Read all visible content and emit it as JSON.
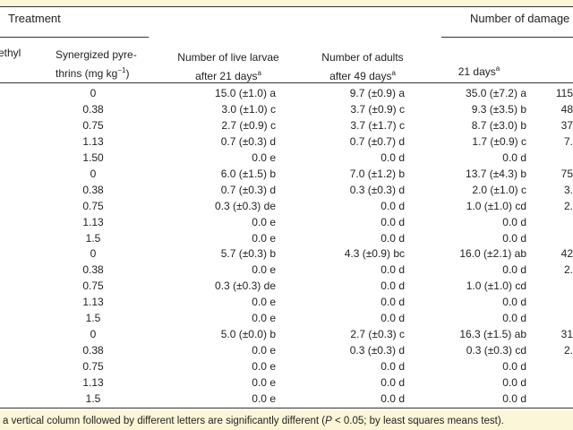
{
  "header": {
    "treatment": "Treatment",
    "damage": "Number of damage",
    "col_ethyl": "ethyl",
    "col_pyre_line1": "Synergized pyre-",
    "col_pyre_line2": "thrins (mg kg",
    "col_pyre_sup": "−1",
    "col_pyre_tail": ")",
    "col_larvae_line1": "Number of live larvae",
    "col_larvae_line2": "after 21 days",
    "col_larvae_sup": "a",
    "col_adults_line1": "Number of adults",
    "col_adults_line2": "after 49 days",
    "col_adults_sup": "a",
    "col_21_line": "21 days",
    "col_21_sup": "a"
  },
  "table": {
    "rows": [
      [
        "0",
        "15.0 (±1.0) a",
        "9.7 (±0.9) a",
        "35.0 (±7.2) a",
        "115"
      ],
      [
        "0.38",
        "3.0 (±1.0) c",
        "3.7 (±0.9) c",
        "9.3 (±3.5) b",
        "48"
      ],
      [
        "0.75",
        "2.7 (±0.9) c",
        "3.7 (±1.7) c",
        "8.7 (±3.0) b",
        "37"
      ],
      [
        "1.13",
        "0.7 (±0.3) d",
        "0.7 (±0.7) d",
        "1.7 (±0.9) c",
        "7."
      ],
      [
        "1.50",
        "0.0 e",
        "0.0 d",
        "0.0 d"
      ],
      [
        "0",
        "6.0 (±1.5) b",
        "7.0 (±1.2) b",
        "13.7 (±4.3) b",
        "75"
      ],
      [
        "0.38",
        "0.7 (±0.3) d",
        "0.3 (±0.3) d",
        "2.0 (±1.0) c",
        "3."
      ],
      [
        "0.75",
        "0.3 (±0.3) de",
        "0.0 d",
        "1.0 (±1.0) cd",
        "2."
      ],
      [
        "1.13",
        "0.0 e",
        "0.0 d",
        "0.0 d"
      ],
      [
        "1.5",
        "0.0 e",
        "0.0 d",
        "0.0 d"
      ],
      [
        "0",
        "5.7 (±0.3) b",
        "4.3 (±0.9) bc",
        "16.0 (±2.1) ab",
        "42"
      ],
      [
        "0.38",
        "0.0 e",
        "0.0 d",
        "0.0 d",
        "2."
      ],
      [
        "0.75",
        "0.3 (±0.3) de",
        "0.0 d",
        "1.0 (±1.0) cd"
      ],
      [
        "1.13",
        "0.0 e",
        "0.0 d",
        "0.0 d"
      ],
      [
        "1.5",
        "0.0 e",
        "0.0 d",
        "0.0 d"
      ],
      [
        "0",
        "5.0 (±0.0) b",
        "2.7 (±0.3) c",
        "16.3 (±1.5) ab",
        "31"
      ],
      [
        "0.38",
        "0.0 e",
        "0.3 (±0.3) d",
        "0.3 (±0.3) cd",
        "2."
      ],
      [
        "0.75",
        "0.0 e",
        "0.0 d",
        "0.0 d"
      ],
      [
        "1.13",
        "0.0 e",
        "0.0 d",
        "0.0 d"
      ],
      [
        "1.5",
        "0.0 e",
        "0.0 d",
        "0.0 d"
      ]
    ]
  },
  "footer": {
    "text_before": "a vertical column followed by different letters are significantly different (",
    "italic": "P",
    "text_after": " < 0.05; by least squares means test)."
  }
}
